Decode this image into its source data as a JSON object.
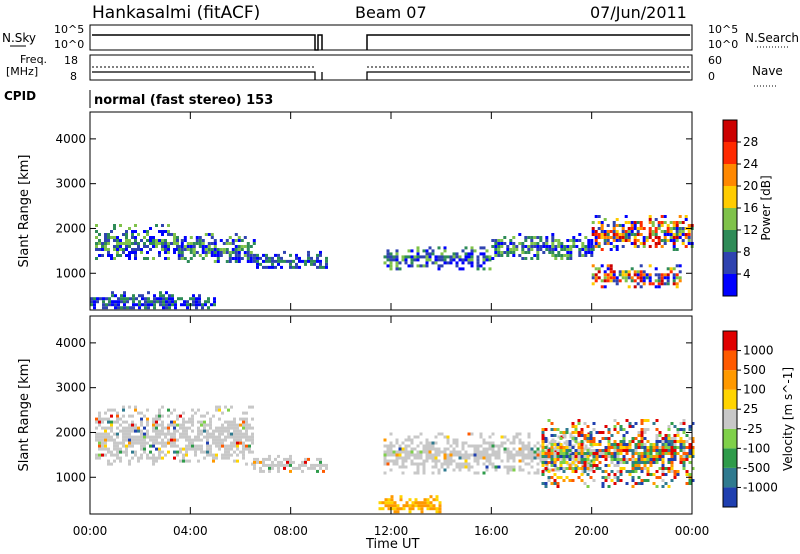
{
  "header": {
    "site": "Hankasalmi (fitACF)",
    "beam": "Beam 07",
    "date": "07/Jun/2011"
  },
  "status_panels": {
    "nsky_label": "N.Sky",
    "nsearch_label": "N.Search",
    "nsky_ticks": [
      "10^5",
      "10^0"
    ],
    "nsearch_ticks": [
      "10^5",
      "10^0"
    ],
    "freq_label": [
      "Freq.",
      "[MHz]"
    ],
    "freq_ticks": [
      "18",
      "8"
    ],
    "nave_label": "Nave",
    "nave_ticks": [
      "60",
      "0"
    ],
    "cpid_label": "CPID",
    "cpid_text": "normal (fast stereo) 153"
  },
  "chart_data": [
    {
      "type": "heatmap",
      "name": "power",
      "xlabel": "",
      "ylabel": "Slant Range [km]",
      "x_ticks": [
        "00:00",
        "04:00",
        "08:00",
        "12:00",
        "16:00",
        "20:00",
        "00:00"
      ],
      "xlim_hours": [
        0,
        24
      ],
      "y_ticks": [
        "1000",
        "2000",
        "3000",
        "4000"
      ],
      "ylim_km": [
        180,
        4600
      ],
      "colorbar": {
        "label": "Power [dB]",
        "ticks": [
          "4",
          "8",
          "12",
          "16",
          "20",
          "24",
          "28"
        ],
        "colors": [
          "#0000ff",
          "#2f43b0",
          "#2e8b57",
          "#7fc24a",
          "#ffcc00",
          "#ff8800",
          "#ff2a00",
          "#cc0000"
        ]
      },
      "data_gap_hours": [
        9.4,
        11.7
      ],
      "echo_regions": [
        {
          "t0": 0.2,
          "t1": 3.5,
          "r0": 1300,
          "r1": 2100,
          "level": "mixed"
        },
        {
          "t0": 3.5,
          "t1": 6.5,
          "r0": 1250,
          "r1": 1900,
          "level": "mixed"
        },
        {
          "t0": 6.5,
          "t1": 9.4,
          "r0": 1100,
          "r1": 1500,
          "level": "weak"
        },
        {
          "t0": 11.7,
          "t1": 16.0,
          "r0": 1100,
          "r1": 1600,
          "level": "mixed"
        },
        {
          "t0": 16.0,
          "t1": 20.0,
          "r0": 1300,
          "r1": 1900,
          "level": "mixed"
        },
        {
          "t0": 20.0,
          "t1": 24.0,
          "r0": 1500,
          "r1": 2300,
          "level": "strong"
        },
        {
          "t0": 20.0,
          "t1": 23.5,
          "r0": 700,
          "r1": 1200,
          "level": "strong"
        },
        {
          "t0": 0.0,
          "t1": 5.0,
          "r0": 200,
          "r1": 600,
          "level": "weak"
        }
      ]
    },
    {
      "type": "heatmap",
      "name": "velocity",
      "xlabel": "Time UT",
      "ylabel": "Slant Range [km]",
      "x_ticks": [
        "00:00",
        "04:00",
        "08:00",
        "12:00",
        "16:00",
        "20:00",
        "00:00"
      ],
      "xlim_hours": [
        0,
        24
      ],
      "y_ticks": [
        "1000",
        "2000",
        "3000",
        "4000"
      ],
      "ylim_km": [
        180,
        4600
      ],
      "colorbar": {
        "label": "Velocity [m s^-1]",
        "ticks": [
          "1000",
          "500",
          "100",
          "25",
          "-25",
          "-100",
          "-500",
          "-1000"
        ],
        "colors": [
          "#1f3fb0",
          "#2f7a8f",
          "#2e9b4a",
          "#7fd04a",
          "#c8c8c8",
          "#ffd400",
          "#ff9900",
          "#ff5a00",
          "#e00000"
        ]
      },
      "data_gap_hours": [
        9.4,
        11.7
      ],
      "echo_regions": [
        {
          "t0": 0.2,
          "t1": 6.5,
          "r0": 1300,
          "r1": 2600,
          "level": "ground"
        },
        {
          "t0": 6.5,
          "t1": 9.4,
          "r0": 1100,
          "r1": 1500,
          "level": "ground"
        },
        {
          "t0": 11.7,
          "t1": 20.0,
          "r0": 1100,
          "r1": 2000,
          "level": "ground"
        },
        {
          "t0": 18.0,
          "t1": 24.0,
          "r0": 800,
          "r1": 2300,
          "level": "mixed"
        },
        {
          "t0": 11.5,
          "t1": 14.0,
          "r0": 200,
          "r1": 600,
          "level": "negative"
        }
      ]
    }
  ]
}
